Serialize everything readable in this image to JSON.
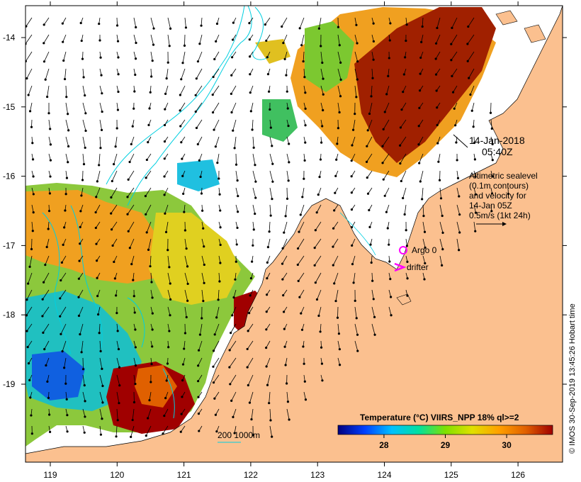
{
  "map": {
    "date": "14-Jan-2018",
    "time": "05:40Z",
    "altimetry_lines": [
      "Altimetric sealevel",
      "(0.1m contours)",
      "and velocity for",
      "14-Jan 05Z",
      "0.5m/s (1kt 24h)"
    ],
    "argo_label": "Argo 0",
    "drifter_label": "drifter",
    "depth_label": "200  1000m",
    "credit": "© IMOS 30-Sep-2019 13:45:26 Hobart time",
    "colorbar": {
      "title": "Temperature (°C) VIIRS_NPP 18% ql>=2",
      "ticks": [
        "28",
        "29",
        "30"
      ],
      "tick_values": [
        28,
        29,
        30
      ],
      "range": [
        27.25,
        30.75
      ],
      "colors": [
        "#000080",
        "#0040ff",
        "#00c0ff",
        "#00e0a0",
        "#80e000",
        "#e0e000",
        "#ffa000",
        "#e06000",
        "#a00000"
      ]
    },
    "x_ticks": [
      {
        "label": "119",
        "value": 119
      },
      {
        "label": "120",
        "value": 120
      },
      {
        "label": "121",
        "value": 121
      },
      {
        "label": "122",
        "value": 122
      },
      {
        "label": "123",
        "value": 123
      },
      {
        "label": "124",
        "value": 124
      },
      {
        "label": "125",
        "value": 125
      },
      {
        "label": "126",
        "value": 126
      }
    ],
    "y_ticks": [
      {
        "label": "-14",
        "value": -14
      },
      {
        "label": "-15",
        "value": -15
      },
      {
        "label": "-16",
        "value": -16
      },
      {
        "label": "-17",
        "value": -17
      },
      {
        "label": "-18",
        "value": -18
      },
      {
        "label": "-19",
        "value": -19
      }
    ],
    "colors": {
      "land": "#fbc08f",
      "sea": "#ffffff",
      "contour": "#00cfe0",
      "argo": "#ff00ff",
      "drifter": "#ff00ff"
    }
  }
}
